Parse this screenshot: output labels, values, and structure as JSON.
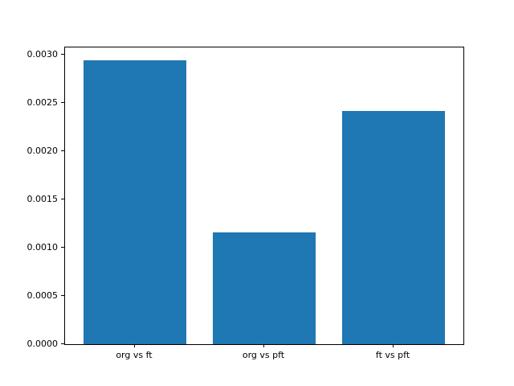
{
  "chart_data": {
    "type": "bar",
    "title": "",
    "xlabel": "",
    "ylabel": "",
    "categories": [
      "org vs ft",
      "org vs pft",
      "ft vs pft"
    ],
    "values": [
      0.00294,
      0.00116,
      0.00242
    ],
    "yticks": [
      0.0,
      0.0005,
      0.001,
      0.0015,
      0.002,
      0.0025,
      0.003
    ],
    "ytick_labels": [
      "0.0000",
      "0.0005",
      "0.0010",
      "0.0015",
      "0.0020",
      "0.0025",
      "0.0030"
    ],
    "ylim": [
      0,
      0.003075
    ],
    "xlim": [
      -0.54,
      2.54
    ],
    "bar_width": 0.8,
    "bar_color": "#1f77b4",
    "spine_color": "#000000",
    "background_color": "#ffffff",
    "grid": false,
    "legend": null
  }
}
